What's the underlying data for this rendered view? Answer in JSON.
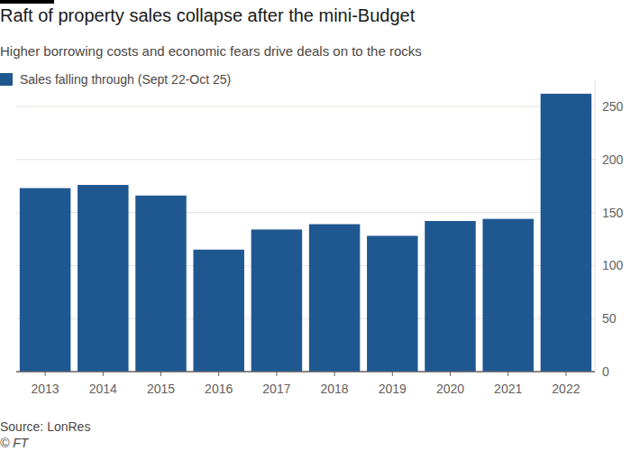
{
  "chart_data": {
    "type": "bar",
    "title": "Raft of property sales collapse after the mini-Budget",
    "subtitle": "Higher borrowing costs and economic fears drive deals on to the rocks",
    "categories": [
      "2013",
      "2014",
      "2015",
      "2016",
      "2017",
      "2018",
      "2019",
      "2020",
      "2021",
      "2022"
    ],
    "series": [
      {
        "name": "Sales falling through (Sept 22-Oct 25)",
        "color": "#1f5891",
        "values": [
          173,
          176,
          166,
          115,
          134,
          139,
          128,
          142,
          144,
          262
        ]
      }
    ],
    "ylim": [
      0,
      275
    ],
    "yticks": [
      0,
      50,
      100,
      150,
      200,
      250
    ],
    "grid": true,
    "legend": "top-left",
    "source": "Source: LonRes",
    "credit": "© FT"
  }
}
